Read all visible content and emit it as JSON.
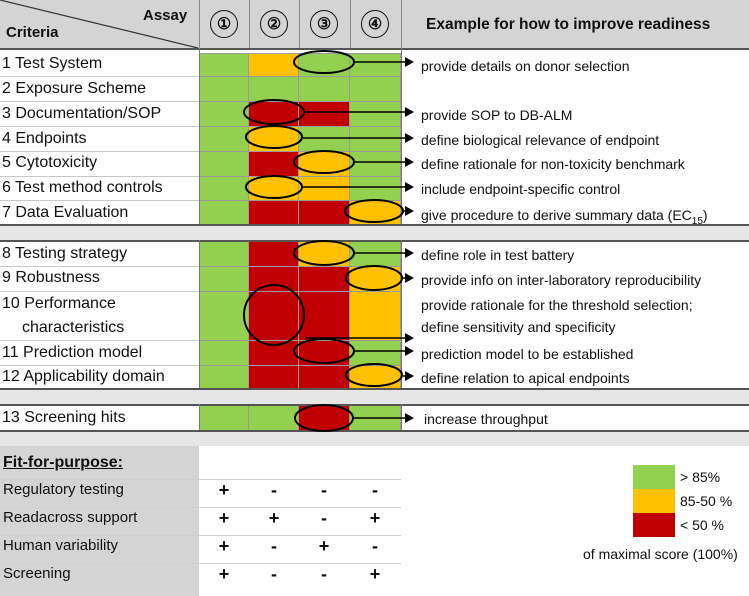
{
  "header": {
    "assay_label": "Assay",
    "criteria_label": "Criteria",
    "assays": [
      "①",
      "②",
      "③",
      "④"
    ],
    "example_label": "Example for how to improve readiness"
  },
  "colors": {
    "green": "#92d050",
    "orange": "#ffc000",
    "red": "#c00000"
  },
  "criteria": [
    {
      "label": "1  Test System",
      "cells": [
        "green",
        "orange",
        "green",
        "green"
      ],
      "note": "provide details on donor selection"
    },
    {
      "label": "2  Exposure Scheme",
      "cells": [
        "green",
        "green",
        "green",
        "green"
      ],
      "note": ""
    },
    {
      "label": "3  Documentation/SOP",
      "cells": [
        "green",
        "red",
        "red",
        "green"
      ],
      "note": "provide SOP to DB-ALM"
    },
    {
      "label": "4  Endpoints",
      "cells": [
        "green",
        "orange",
        "green",
        "green"
      ],
      "note": "define biological relevance of endpoint"
    },
    {
      "label": "5  Cytotoxicity",
      "cells": [
        "green",
        "red",
        "orange",
        "green"
      ],
      "note": "define rationale for non-toxicity benchmark"
    },
    {
      "label": "6  Test method controls",
      "cells": [
        "green",
        "orange",
        "orange",
        "green"
      ],
      "note": "include endpoint-specific control"
    },
    {
      "label": "7  Data Evaluation",
      "cells": [
        "green",
        "red",
        "red",
        "orange"
      ],
      "note": "give procedure to derive summary data (EC",
      "note_sub": "15",
      "note_end": ")"
    },
    {
      "label": "8   Testing strategy",
      "cells": [
        "green",
        "red",
        "orange",
        "green"
      ],
      "note": "define role in test battery"
    },
    {
      "label": "9   Robustness",
      "cells": [
        "green",
        "red",
        "red",
        "orange"
      ],
      "note": "provide info on inter-laboratory reproducibility"
    },
    {
      "label": "10 Performance",
      "label2": "characteristics",
      "cells": [
        "green",
        "red",
        "red",
        "orange"
      ],
      "note": "provide rationale for the threshold selection;",
      "note2": "define sensitivity and specificity"
    },
    {
      "label": "11 Prediction model",
      "cells": [
        "green",
        "red",
        "red",
        "green"
      ],
      "note": "prediction model to be established"
    },
    {
      "label": "12 Applicability domain",
      "cells": [
        "green",
        "red",
        "red",
        "orange"
      ],
      "note": "define relation to apical endpoints"
    },
    {
      "label": "13 Screening hits",
      "cells": [
        "green",
        "green",
        "red",
        "green"
      ],
      "note": "increase throughput"
    }
  ],
  "fit": {
    "title": "Fit-for-purpose:",
    "rows": [
      {
        "label": "Regulatory testing",
        "marks": [
          "+",
          "-",
          "-",
          "-"
        ]
      },
      {
        "label": "Readacross support",
        "marks": [
          "+",
          "+",
          "-",
          "+"
        ]
      },
      {
        "label": "Human variability",
        "marks": [
          "+",
          "-",
          "+",
          "-"
        ]
      },
      {
        "label": "Screening",
        "marks": [
          "+",
          "-",
          "-",
          "+"
        ]
      }
    ]
  },
  "legend": {
    "items": [
      {
        "color": "#92d050",
        "label": "> 85%"
      },
      {
        "color": "#ffc000",
        "label": "85-50 %"
      },
      {
        "color": "#c00000",
        "label": "< 50 %"
      }
    ],
    "caption": "of maximal score (100%)"
  }
}
